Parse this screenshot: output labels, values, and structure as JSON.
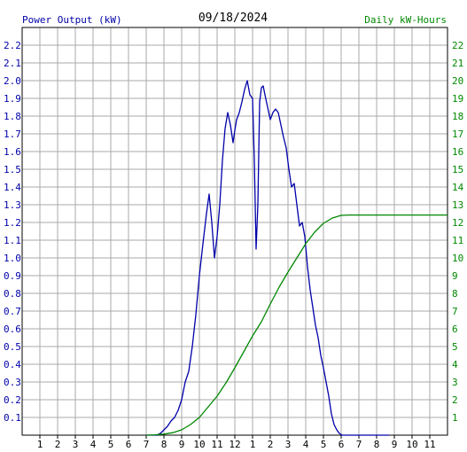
{
  "chart_data": {
    "type": "line",
    "title": "09/18/2024",
    "left_axis_label": "Power Output (kW)",
    "right_axis_label": "Daily kW-Hours",
    "x_tick_labels": [
      "1",
      "2",
      "3",
      "4",
      "5",
      "6",
      "7",
      "8",
      "9",
      "10",
      "11",
      "12",
      "1",
      "2",
      "3",
      "4",
      "5",
      "6",
      "7",
      "8",
      "9",
      "10",
      "11"
    ],
    "x_range_hours": [
      0,
      24
    ],
    "left_ylim": [
      0,
      2.3
    ],
    "left_ticks": [
      "0.1",
      "0.2",
      "0.3",
      "0.4",
      "0.5",
      "0.6",
      "0.7",
      "0.8",
      "0.9",
      "1.0",
      "1.1",
      "1.2",
      "1.3",
      "1.4",
      "1.5",
      "1.6",
      "1.7",
      "1.8",
      "1.9",
      "2.0",
      "2.1",
      "2.2"
    ],
    "right_ylim": [
      0,
      23
    ],
    "right_ticks": [
      "1",
      "2",
      "3",
      "4",
      "5",
      "6",
      "7",
      "8",
      "9",
      "10",
      "11",
      "12",
      "13",
      "14",
      "15",
      "16",
      "17",
      "18",
      "19",
      "20",
      "21",
      "22"
    ],
    "grid": true,
    "colors": {
      "power": "#0000aa",
      "energy": "#008800",
      "grid": "#aaaaaa",
      "left_text": "#0000aa",
      "right_text": "#008800",
      "axis": "#000000"
    },
    "series": [
      {
        "name": "Power Output (kW)",
        "axis": "left",
        "x": [
          7.0,
          7.3,
          7.6,
          7.8,
          8.0,
          8.2,
          8.4,
          8.6,
          8.8,
          9.0,
          9.2,
          9.4,
          9.6,
          9.8,
          10.0,
          10.2,
          10.4,
          10.55,
          10.7,
          10.85,
          11.0,
          11.15,
          11.3,
          11.45,
          11.6,
          11.75,
          11.9,
          12.0,
          12.1,
          12.25,
          12.4,
          12.55,
          12.7,
          12.85,
          13.0,
          13.1,
          13.2,
          13.3,
          13.4,
          13.5,
          13.6,
          13.7,
          13.85,
          14.0,
          14.15,
          14.3,
          14.45,
          14.6,
          14.75,
          14.9,
          15.05,
          15.2,
          15.35,
          15.5,
          15.65,
          15.8,
          15.95,
          16.1,
          16.25,
          16.4,
          16.55,
          16.7,
          16.85,
          17.0,
          17.15,
          17.3,
          17.45,
          17.6,
          17.75,
          17.9,
          18.05,
          18.2,
          18.35,
          18.5,
          18.65,
          18.8,
          18.95,
          19.1,
          19.3,
          19.5,
          19.7,
          19.9,
          20.1,
          20.3,
          20.5,
          20.7
        ],
        "y": [
          0.0,
          0.0,
          0.0,
          0.01,
          0.03,
          0.05,
          0.08,
          0.1,
          0.14,
          0.2,
          0.3,
          0.36,
          0.5,
          0.68,
          0.9,
          1.08,
          1.25,
          1.36,
          1.2,
          1.0,
          1.12,
          1.3,
          1.55,
          1.73,
          1.82,
          1.75,
          1.65,
          1.72,
          1.78,
          1.82,
          1.88,
          1.95,
          2.0,
          1.92,
          1.9,
          1.55,
          1.05,
          1.3,
          1.88,
          1.96,
          1.97,
          1.92,
          1.85,
          1.78,
          1.82,
          1.84,
          1.82,
          1.75,
          1.68,
          1.62,
          1.5,
          1.4,
          1.42,
          1.3,
          1.18,
          1.2,
          1.12,
          0.95,
          0.82,
          0.72,
          0.62,
          0.55,
          0.45,
          0.38,
          0.3,
          0.22,
          0.12,
          0.06,
          0.03,
          0.01,
          0.0,
          0.0,
          0.0,
          0.0,
          0.0,
          0.0,
          0.0,
          0.0,
          0.0,
          0.0,
          0.0,
          0.0,
          0.0,
          0.0,
          0.0,
          0.0
        ]
      },
      {
        "name": "Daily kW-Hours",
        "axis": "right",
        "x": [
          7.0,
          7.5,
          8.0,
          8.5,
          9.0,
          9.5,
          10.0,
          10.5,
          11.0,
          11.5,
          12.0,
          12.5,
          13.0,
          13.5,
          14.0,
          14.5,
          15.0,
          15.5,
          16.0,
          16.5,
          17.0,
          17.5,
          18.0,
          18.5,
          19.0,
          20.0,
          21.0,
          22.0,
          23.0,
          24.0
        ],
        "y": [
          0.0,
          0.02,
          0.06,
          0.14,
          0.3,
          0.6,
          1.0,
          1.6,
          2.2,
          2.95,
          3.8,
          4.7,
          5.6,
          6.4,
          7.4,
          8.35,
          9.2,
          10.0,
          10.8,
          11.45,
          11.95,
          12.25,
          12.4,
          12.42,
          12.42,
          12.42,
          12.42,
          12.42,
          12.42,
          12.42
        ]
      }
    ]
  }
}
